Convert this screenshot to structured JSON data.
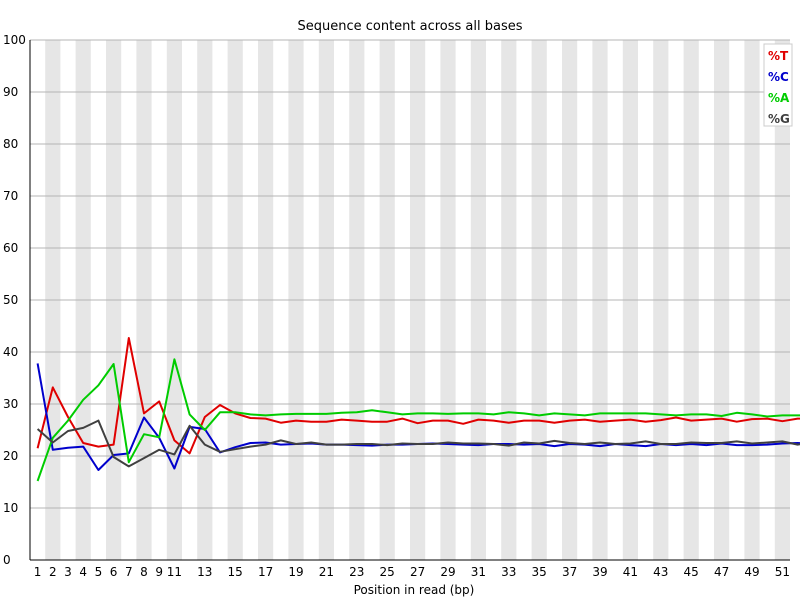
{
  "chart_data": {
    "type": "line",
    "title": "Sequence content across all bases",
    "xlabel": "Position in read (bp)",
    "ylabel": "",
    "ylim": [
      0,
      100
    ],
    "y_ticks": [
      0,
      10,
      20,
      30,
      40,
      50,
      60,
      70,
      80,
      90,
      100
    ],
    "x_positions": [
      1,
      2,
      3,
      4,
      5,
      6,
      7,
      8,
      9,
      10,
      11,
      12,
      13,
      14,
      15,
      16,
      17,
      18,
      19,
      20,
      21,
      22,
      23,
      24,
      25,
      26,
      27,
      28,
      29,
      30,
      31,
      32,
      33,
      34,
      35,
      36,
      37,
      38,
      39,
      40,
      41,
      42,
      43,
      44,
      45,
      46,
      47,
      48,
      49,
      50,
      51,
      52
    ],
    "x_tick_labels": [
      "1",
      "2",
      "3",
      "4",
      "5",
      "6",
      "7",
      "8",
      "9",
      "11",
      "13",
      "15",
      "17",
      "19",
      "21",
      "23",
      "25",
      "27",
      "29",
      "31",
      "33",
      "35",
      "37",
      "39",
      "41",
      "43",
      "45",
      "47",
      "49",
      "51"
    ],
    "x_tick_slots": [
      0,
      1,
      2,
      3,
      4,
      5,
      6,
      7,
      8,
      9,
      11,
      13,
      15,
      17,
      19,
      21,
      23,
      25,
      27,
      29,
      31,
      33,
      35,
      37,
      39,
      41,
      43,
      45,
      47,
      49
    ],
    "grid": true,
    "legend_position": "top-right",
    "series": [
      {
        "name": "%T",
        "color": "#e00000",
        "values": [
          21.5,
          33.2,
          27.5,
          22.5,
          21.8,
          22.2,
          42.7,
          28.2,
          30.5,
          23.0,
          20.5,
          27.5,
          29.8,
          28.2,
          27.3,
          27.2,
          26.4,
          26.8,
          26.6,
          26.6,
          27.0,
          26.8,
          26.6,
          26.6,
          27.2,
          26.3,
          26.8,
          26.8,
          26.2,
          27.0,
          26.8,
          26.4,
          26.8,
          26.8,
          26.4,
          26.8,
          27.0,
          26.6,
          26.8,
          27.0,
          26.6,
          26.9,
          27.4,
          26.8,
          27.0,
          27.2,
          26.6,
          27.1,
          27.2,
          26.7,
          27.2,
          27.2
        ]
      },
      {
        "name": "%C",
        "color": "#0000cc",
        "values": [
          37.8,
          21.2,
          21.6,
          21.8,
          17.3,
          20.2,
          20.5,
          27.4,
          23.5,
          17.6,
          25.6,
          25.2,
          20.7,
          21.7,
          22.5,
          22.6,
          22.2,
          22.3,
          22.4,
          22.2,
          22.2,
          22.1,
          22.0,
          22.2,
          22.2,
          22.3,
          22.4,
          22.3,
          22.2,
          22.1,
          22.3,
          22.3,
          22.2,
          22.3,
          21.9,
          22.3,
          22.2,
          21.9,
          22.3,
          22.1,
          21.9,
          22.3,
          22.1,
          22.3,
          22.1,
          22.4,
          22.1,
          22.1,
          22.2,
          22.4,
          22.5,
          22.3
        ]
      },
      {
        "name": "%A",
        "color": "#00cc00",
        "values": [
          15.2,
          23.5,
          26.8,
          30.8,
          33.6,
          37.7,
          18.8,
          24.2,
          23.6,
          38.6,
          28.0,
          25.0,
          28.4,
          28.4,
          28.0,
          27.8,
          28.0,
          28.1,
          28.1,
          28.1,
          28.3,
          28.4,
          28.8,
          28.4,
          28.0,
          28.2,
          28.2,
          28.1,
          28.2,
          28.2,
          28.0,
          28.4,
          28.2,
          27.8,
          28.2,
          28.0,
          27.8,
          28.2,
          28.2,
          28.2,
          28.2,
          28.0,
          27.8,
          28.0,
          28.0,
          27.7,
          28.3,
          28.0,
          27.6,
          27.8,
          27.8,
          27.8
        ]
      },
      {
        "name": "%G",
        "color": "#404040",
        "values": [
          25.2,
          22.6,
          24.8,
          25.4,
          26.8,
          19.8,
          18.0,
          19.6,
          21.2,
          20.3,
          25.8,
          22.2,
          20.8,
          21.3,
          21.8,
          22.2,
          23.0,
          22.3,
          22.6,
          22.2,
          22.2,
          22.3,
          22.3,
          22.1,
          22.4,
          22.3,
          22.3,
          22.6,
          22.4,
          22.4,
          22.3,
          22.0,
          22.6,
          22.4,
          22.9,
          22.5,
          22.3,
          22.6,
          22.3,
          22.4,
          22.8,
          22.3,
          22.3,
          22.6,
          22.5,
          22.5,
          22.8,
          22.4,
          22.6,
          22.8,
          22.2,
          22.6
        ]
      }
    ]
  }
}
